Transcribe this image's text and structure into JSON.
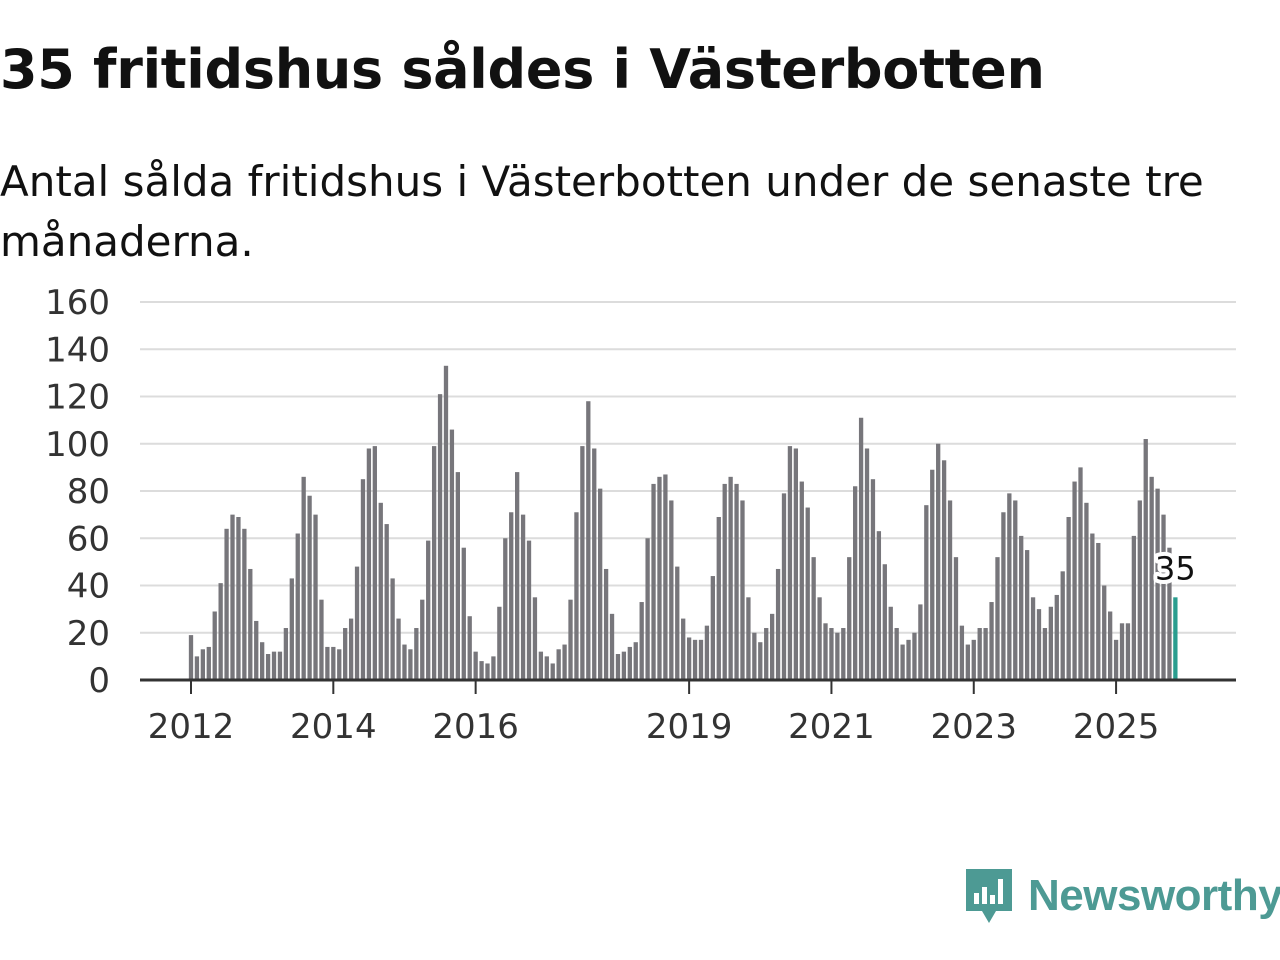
{
  "header": {
    "title": "35 fritidshus såldes i Västerbotten",
    "subtitle": "Antal sålda fritidshus i Västerbotten under de senaste tre månaderna."
  },
  "brand": {
    "name": "Newsworthy",
    "color": "#4d9a94",
    "icon": "newsworthy-logo-icon"
  },
  "chart_data": {
    "type": "bar",
    "title": "35 fritidshus såldes i Västerbotten",
    "subtitle": "Antal sålda fritidshus i Västerbotten under de senaste tre månaderna.",
    "xlabel": "",
    "ylabel": "",
    "ylim": [
      0,
      160
    ],
    "yticks": [
      0,
      20,
      40,
      60,
      80,
      100,
      120,
      140,
      160
    ],
    "xticks": [
      "2012",
      "2014",
      "2016",
      "2019",
      "2021",
      "2023",
      "2025"
    ],
    "bar_color": "#77767b",
    "highlight_color": "#2a9d8f",
    "grid": true,
    "annotation": {
      "label": "35",
      "target": "last-bar"
    },
    "series": [
      {
        "name": "Antal sålda fritidshus",
        "start": "2012-01",
        "values": [
          19,
          10,
          13,
          14,
          29,
          41,
          64,
          70,
          69,
          64,
          47,
          25,
          16,
          11,
          12,
          12,
          22,
          43,
          62,
          86,
          78,
          70,
          34,
          14,
          14,
          13,
          22,
          26,
          48,
          85,
          98,
          99,
          75,
          66,
          43,
          26,
          15,
          13,
          22,
          34,
          59,
          99,
          121,
          133,
          106,
          88,
          56,
          27,
          12,
          8,
          7,
          10,
          31,
          60,
          71,
          88,
          70,
          59,
          35,
          12,
          10,
          7,
          13,
          15,
          34,
          71,
          99,
          118,
          98,
          81,
          47,
          28,
          11,
          12,
          14,
          16,
          33,
          60,
          83,
          86,
          87,
          76,
          48,
          26,
          18,
          17,
          17,
          23,
          44,
          69,
          83,
          86,
          83,
          76,
          35,
          20,
          16,
          22,
          28,
          47,
          79,
          99,
          98,
          84,
          73,
          52,
          35,
          24,
          22,
          20,
          22,
          52,
          82,
          111,
          98,
          85,
          63,
          49,
          31,
          22,
          15,
          17,
          20,
          32,
          74,
          89,
          100,
          93,
          76,
          52,
          23,
          15,
          17,
          22,
          22,
          33,
          52,
          71,
          79,
          76,
          61,
          55,
          35,
          30,
          22,
          31,
          36,
          46,
          69,
          84,
          90,
          75,
          62,
          58,
          40,
          29,
          17,
          24,
          24,
          61,
          76,
          102,
          86,
          81,
          70,
          56,
          35
        ]
      }
    ]
  }
}
